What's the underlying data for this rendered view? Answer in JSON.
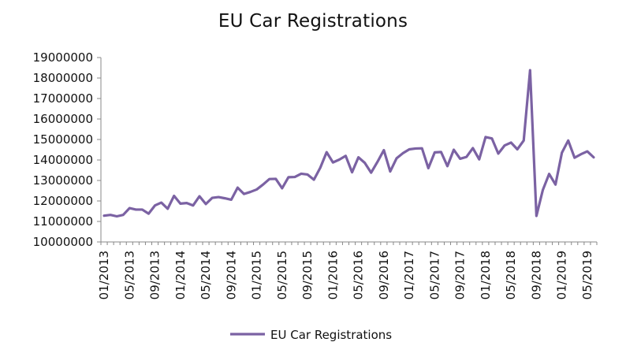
{
  "chart_data": {
    "type": "line",
    "title": "EU Car Registrations",
    "xlabel": "",
    "ylabel": "",
    "ylim": [
      10000000,
      19000000
    ],
    "yticks": [
      10000000,
      11000000,
      12000000,
      13000000,
      14000000,
      15000000,
      16000000,
      17000000,
      18000000,
      19000000
    ],
    "x_tick_labels": [
      "01/2013",
      "05/2013",
      "09/2013",
      "01/2014",
      "05/2014",
      "09/2014",
      "01/2015",
      "05/2015",
      "09/2015",
      "01/2016",
      "05/2016",
      "09/2016",
      "01/2017",
      "05/2017",
      "09/2017",
      "01/2018",
      "05/2018",
      "09/2018",
      "01/2019",
      "05/2019"
    ],
    "x": [
      "01/2013",
      "02/2013",
      "03/2013",
      "04/2013",
      "05/2013",
      "06/2013",
      "07/2013",
      "08/2013",
      "09/2013",
      "10/2013",
      "11/2013",
      "12/2013",
      "01/2014",
      "02/2014",
      "03/2014",
      "04/2014",
      "05/2014",
      "06/2014",
      "07/2014",
      "08/2014",
      "09/2014",
      "10/2014",
      "11/2014",
      "12/2014",
      "01/2015",
      "02/2015",
      "03/2015",
      "04/2015",
      "05/2015",
      "06/2015",
      "07/2015",
      "08/2015",
      "09/2015",
      "10/2015",
      "11/2015",
      "12/2015",
      "01/2016",
      "02/2016",
      "03/2016",
      "04/2016",
      "05/2016",
      "06/2016",
      "07/2016",
      "08/2016",
      "09/2016",
      "10/2016",
      "11/2016",
      "12/2016",
      "01/2017",
      "02/2017",
      "03/2017",
      "04/2017",
      "05/2017",
      "06/2017",
      "07/2017",
      "08/2017",
      "09/2017",
      "10/2017",
      "11/2017",
      "12/2017",
      "01/2018",
      "02/2018",
      "03/2018",
      "04/2018",
      "05/2018",
      "06/2018",
      "07/2018",
      "08/2018",
      "09/2018",
      "10/2018",
      "11/2018",
      "12/2018",
      "01/2019",
      "02/2019",
      "03/2019",
      "04/2019",
      "05/2019",
      "06/2019"
    ],
    "series": [
      {
        "name": "EU Car Registrations",
        "color": "#7B62A3",
        "values": [
          11280000,
          11320000,
          11250000,
          11320000,
          11650000,
          11580000,
          11580000,
          11380000,
          11780000,
          11920000,
          11620000,
          12250000,
          11870000,
          11900000,
          11780000,
          12230000,
          11850000,
          12150000,
          12190000,
          12130000,
          12060000,
          12650000,
          12340000,
          12440000,
          12560000,
          12800000,
          13070000,
          13080000,
          12620000,
          13160000,
          13170000,
          13330000,
          13290000,
          13040000,
          13620000,
          14380000,
          13880000,
          14020000,
          14200000,
          13400000,
          14130000,
          13860000,
          13380000,
          13910000,
          14480000,
          13440000,
          14080000,
          14330000,
          14520000,
          14560000,
          14570000,
          13600000,
          14370000,
          14390000,
          13700000,
          14500000,
          14060000,
          14150000,
          14580000,
          14030000,
          15120000,
          15050000,
          14310000,
          14710000,
          14850000,
          14520000,
          14950000,
          18380000,
          11270000,
          12530000,
          13320000,
          12800000,
          14350000,
          14950000,
          14110000,
          14280000,
          14420000,
          14130000
        ]
      }
    ],
    "grid": false,
    "legend_position": "bottom"
  }
}
